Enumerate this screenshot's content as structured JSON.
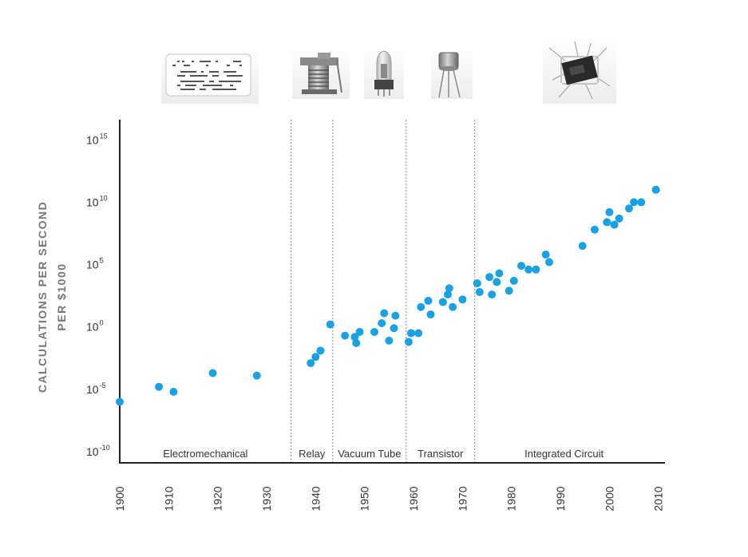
{
  "chart_data": {
    "type": "scatter",
    "title": "",
    "ylabel_lines": [
      "CALCULATIONS PER SECOND",
      "PER $1000"
    ],
    "xlabel": "",
    "y_scale": "log",
    "xlim": [
      1900,
      2012
    ],
    "ylim_exponents": [
      -10,
      17
    ],
    "x_ticks": [
      "1900",
      "1910",
      "1920",
      "1930",
      "1940",
      "1950",
      "1960",
      "1970",
      "1980",
      "1990",
      "2000",
      "2010"
    ],
    "y_ticks": [
      {
        "base": "10",
        "exp": "15"
      },
      {
        "base": "10",
        "exp": "10"
      },
      {
        "base": "10",
        "exp": "5"
      },
      {
        "base": "10",
        "exp": "0"
      },
      {
        "base": "10",
        "exp": "-5"
      },
      {
        "base": "10",
        "exp": "-10"
      }
    ],
    "grid": false,
    "point_color": "#1aa1e3",
    "eras": [
      {
        "label": "Electromechanical",
        "start": 1900,
        "end": 1935,
        "image": "punch-card"
      },
      {
        "label": "Relay",
        "start": 1935,
        "end": 1943.5,
        "image": "relay"
      },
      {
        "label": "Vacuum Tube",
        "start": 1943.5,
        "end": 1958.5,
        "image": "vacuum-tube"
      },
      {
        "label": "Transistor",
        "start": 1958.5,
        "end": 1972.5,
        "image": "transistor"
      },
      {
        "label": "Integrated Circuit",
        "start": 1972.5,
        "end": 2012,
        "image": "integrated-circuit-chip"
      }
    ],
    "points": [
      {
        "x": 1900,
        "y": -6
      },
      {
        "x": 1908,
        "y": -4.8
      },
      {
        "x": 1911,
        "y": -5.2
      },
      {
        "x": 1919,
        "y": -3.7
      },
      {
        "x": 1928,
        "y": -3.9
      },
      {
        "x": 1939,
        "y": -2.9
      },
      {
        "x": 1940,
        "y": -2.4
      },
      {
        "x": 1941,
        "y": -1.9
      },
      {
        "x": 1943,
        "y": 0.2
      },
      {
        "x": 1946,
        "y": -0.7
      },
      {
        "x": 1948,
        "y": -0.8
      },
      {
        "x": 1948.3,
        "y": -1.3
      },
      {
        "x": 1949,
        "y": -0.4
      },
      {
        "x": 1952,
        "y": -0.4
      },
      {
        "x": 1953.5,
        "y": 0.3
      },
      {
        "x": 1954,
        "y": 1.1
      },
      {
        "x": 1955,
        "y": -1.1
      },
      {
        "x": 1956,
        "y": -0.1
      },
      {
        "x": 1956.3,
        "y": 0.9
      },
      {
        "x": 1959,
        "y": -1.2
      },
      {
        "x": 1959.5,
        "y": -0.5
      },
      {
        "x": 1961,
        "y": -0.5
      },
      {
        "x": 1961.5,
        "y": 1.6
      },
      {
        "x": 1963,
        "y": 2.1
      },
      {
        "x": 1963.5,
        "y": 1.0
      },
      {
        "x": 1966,
        "y": 2.0
      },
      {
        "x": 1967,
        "y": 2.6
      },
      {
        "x": 1967.3,
        "y": 3.1
      },
      {
        "x": 1968,
        "y": 1.6
      },
      {
        "x": 1970,
        "y": 2.2
      },
      {
        "x": 1973,
        "y": 3.5
      },
      {
        "x": 1973.5,
        "y": 2.8
      },
      {
        "x": 1975.5,
        "y": 4.0
      },
      {
        "x": 1976,
        "y": 2.6
      },
      {
        "x": 1977,
        "y": 3.6
      },
      {
        "x": 1977.5,
        "y": 4.3
      },
      {
        "x": 1979.5,
        "y": 2.9
      },
      {
        "x": 1980.5,
        "y": 3.7
      },
      {
        "x": 1982,
        "y": 4.9
      },
      {
        "x": 1983.5,
        "y": 4.6
      },
      {
        "x": 1985,
        "y": 4.6
      },
      {
        "x": 1987,
        "y": 5.8
      },
      {
        "x": 1987.7,
        "y": 5.2
      },
      {
        "x": 1994.5,
        "y": 6.5
      },
      {
        "x": 1997,
        "y": 7.8
      },
      {
        "x": 1999.5,
        "y": 8.4
      },
      {
        "x": 2000,
        "y": 9.2
      },
      {
        "x": 2001,
        "y": 8.2
      },
      {
        "x": 2002,
        "y": 8.7
      },
      {
        "x": 2004,
        "y": 9.5
      },
      {
        "x": 2005,
        "y": 10.0
      },
      {
        "x": 2006.5,
        "y": 10.0
      },
      {
        "x": 2009.5,
        "y": 11.0
      }
    ]
  }
}
